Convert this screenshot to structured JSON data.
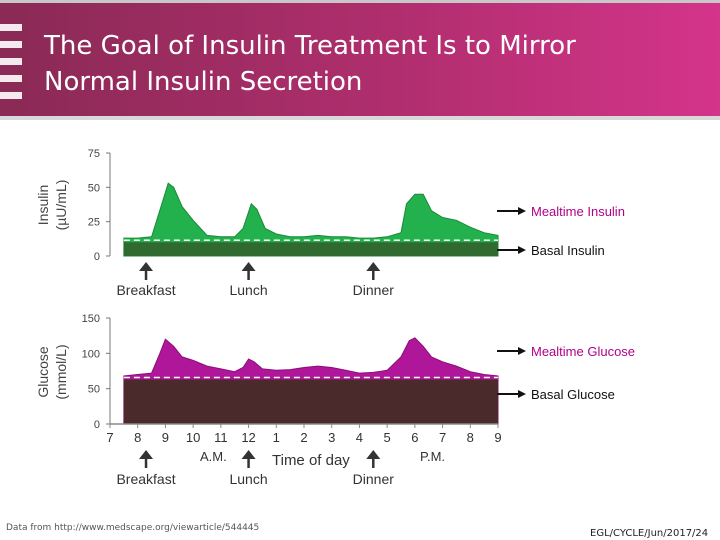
{
  "title": {
    "line1": "The Goal of Insulin Treatment Is to Mirror",
    "line2": "Normal Insulin Secretion"
  },
  "colors": {
    "header_start": "#8a2a55",
    "header_end": "#d4348a",
    "insulin_fill": "#22b14c",
    "insulin_basal": "#2f6b2f",
    "glucose_fill": "#b0169a",
    "glucose_basal": "#4a2a2a",
    "label_pink": "#b0008a"
  },
  "chart_data": [
    {
      "type": "area",
      "title": "Insulin",
      "ylabel_line1": "Insulin",
      "ylabel_line2": "(µU/mL)",
      "ylim": [
        0,
        75
      ],
      "yticks": [
        "75",
        "50",
        "25",
        "0"
      ],
      "xlim": [
        7,
        21
      ],
      "x": [
        7.5,
        8,
        8.5,
        8.9,
        9.1,
        9.3,
        9.6,
        10,
        10.5,
        11,
        11.5,
        11.8,
        12.1,
        12.3,
        12.6,
        13,
        13.5,
        14,
        14.5,
        15,
        15.5,
        16,
        16.5,
        17,
        17.5,
        17.7,
        18,
        18.3,
        18.6,
        19,
        19.5,
        20,
        20.5,
        21
      ],
      "values": [
        13,
        13,
        14,
        40,
        53,
        50,
        36,
        26,
        15,
        14,
        14,
        20,
        38,
        34,
        20,
        16,
        14,
        14,
        15,
        14,
        14,
        13,
        13,
        14,
        17,
        38,
        45,
        45,
        33,
        28,
        26,
        21,
        17,
        15
      ],
      "basal_level": 10,
      "meals": [
        "Breakfast",
        "Lunch",
        "Dinner"
      ],
      "meal_times": [
        8.3,
        12,
        16.5
      ],
      "legend": {
        "mealtime": "Mealtime Insulin",
        "basal": "Basal Insulin"
      }
    },
    {
      "type": "area",
      "title": "Glucose",
      "ylabel_line1": "Glucose",
      "ylabel_line2": "(mmol/L)",
      "ylim": [
        0,
        150
      ],
      "yticks": [
        "150",
        "100",
        "50",
        "0"
      ],
      "xlim": [
        7,
        21
      ],
      "x": [
        7.5,
        8,
        8.5,
        8.8,
        9,
        9.3,
        9.6,
        10,
        10.5,
        11,
        11.5,
        11.8,
        12,
        12.2,
        12.5,
        13,
        13.5,
        14,
        14.5,
        15,
        15.5,
        16,
        16.5,
        17,
        17.5,
        17.8,
        18,
        18.3,
        18.6,
        19,
        19.5,
        20,
        20.5,
        21
      ],
      "values": [
        68,
        70,
        72,
        100,
        120,
        110,
        95,
        90,
        82,
        78,
        74,
        80,
        92,
        88,
        78,
        76,
        77,
        80,
        82,
        80,
        76,
        72,
        73,
        76,
        95,
        118,
        122,
        110,
        95,
        88,
        82,
        74,
        70,
        68
      ],
      "basal_level": 63,
      "xticks": [
        "7",
        "8",
        "9",
        "10",
        "11",
        "12",
        "1",
        "2",
        "3",
        "4",
        "5",
        "6",
        "7",
        "8",
        "9"
      ],
      "am_label": "A.M.",
      "pm_label": "P.M.",
      "xlabel": "Time of day",
      "meals": [
        "Breakfast",
        "Lunch",
        "Dinner"
      ],
      "meal_times": [
        8.3,
        12,
        16.5
      ],
      "legend": {
        "mealtime": "Mealtime Glucose",
        "basal": "Basal Glucose"
      }
    }
  ],
  "footer": {
    "source": "Data from http://www.medscape.org/viewarticle/544445",
    "code": "EGL/CYCLE/Jun/2017/24"
  }
}
